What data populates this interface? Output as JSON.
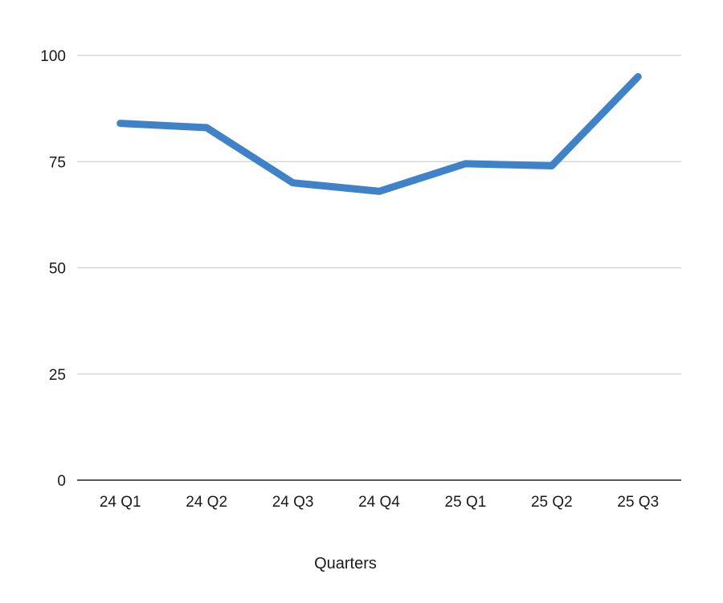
{
  "chart_data": {
    "type": "line",
    "categories": [
      "24 Q1",
      "24 Q2",
      "24 Q3",
      "24 Q4",
      "25 Q1",
      "25 Q2",
      "25 Q3"
    ],
    "series": [
      {
        "values": [
          84,
          83,
          70,
          68,
          74.5,
          74,
          95
        ],
        "color": "#3f82c8"
      }
    ],
    "xlabel": "Quarters",
    "ylabel": "",
    "title": "",
    "ylim": [
      0,
      100
    ],
    "yticks": [
      0,
      25,
      50,
      75,
      100
    ],
    "grid": true,
    "legend": "none"
  }
}
